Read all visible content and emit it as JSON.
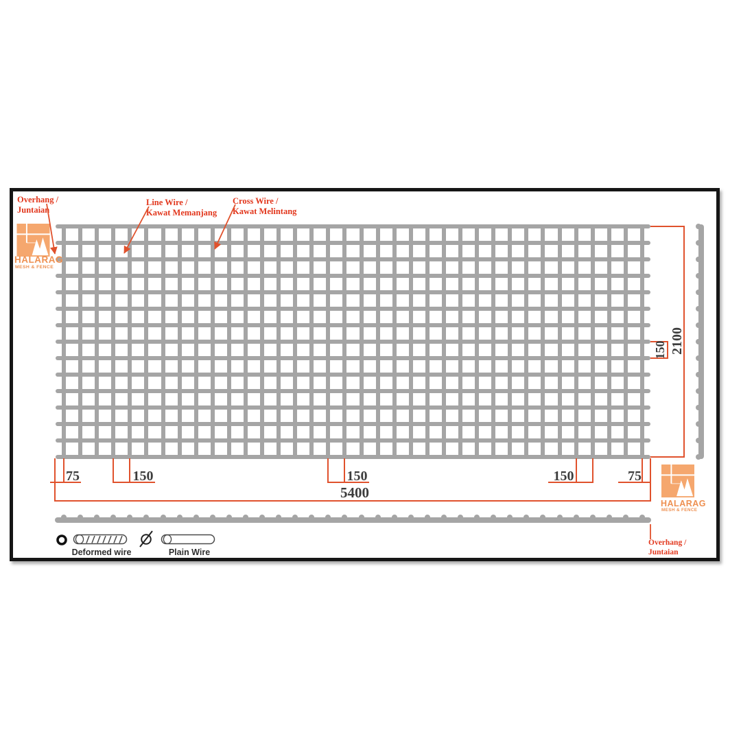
{
  "brand": {
    "name": "HALARAG",
    "subtitle": "MESH & FENCE"
  },
  "callouts": {
    "overhang_top": {
      "line1": "Overhang /",
      "line2": "Juntaian"
    },
    "line_wire": {
      "line1": "Line Wire /",
      "line2": "Kawat Memanjang"
    },
    "cross_wire": {
      "line1": "Cross Wire /",
      "line2": "Kawat Melintang"
    },
    "overhang_bottom": {
      "line1": "Overhang /",
      "line2": "Juntaian"
    }
  },
  "dimensions": {
    "panel_length": "5400",
    "panel_height": "2100",
    "overhang_left": "75",
    "overhang_right": "75",
    "spacing_left": "150",
    "spacing_middle": "150",
    "spacing_right": "150",
    "spacing_vertical": "150"
  },
  "legend": {
    "deformed_label": "Deformed wire",
    "plain_label": "Plain Wire"
  },
  "mesh": {
    "line_wire_count": 15,
    "cross_wire_count": 36
  },
  "colors": {
    "wire": "#a5a5a5",
    "dimension_line": "#e0512c",
    "label_red": "#e2371d",
    "dimension_text": "#3c3c3c",
    "logo_orange": "#f5a76e",
    "logo_text": "#ee9051"
  }
}
